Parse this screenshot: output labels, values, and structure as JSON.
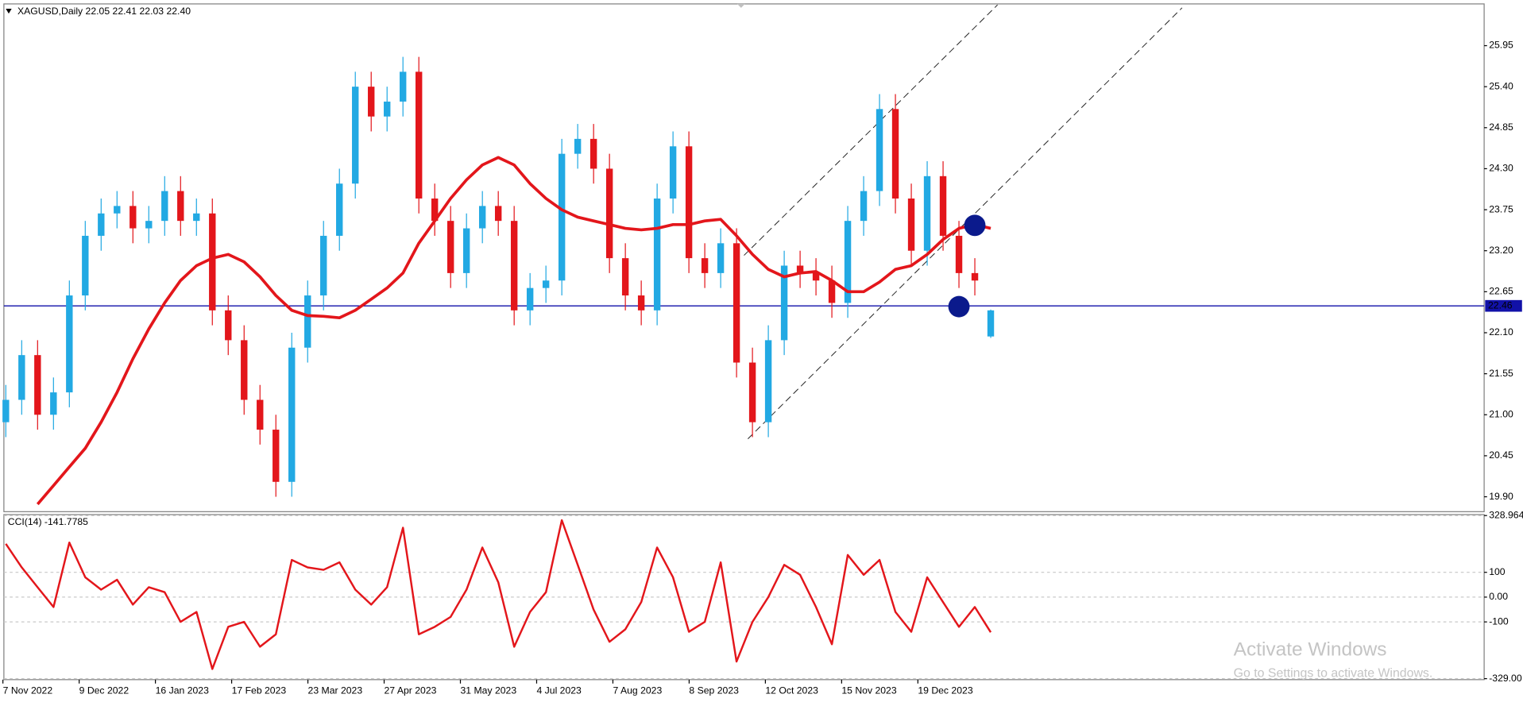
{
  "chart_data": [
    {
      "type": "candlestick",
      "title": "XAGUSD,Daily  22.05 22.41 22.03 22.40",
      "date_labels": [
        "7 Nov 2022",
        "9 Dec 2022",
        "16 Jan 2023",
        "17 Feb 2023",
        "23 Mar 2023",
        "27 Apr 2023",
        "31 May 2023",
        "4 Jul 2023",
        "7 Aug 2023",
        "8 Sep 2023",
        "12 Oct 2023",
        "15 Nov 2023",
        "19 Dec 2023"
      ],
      "open": [
        20.9,
        21.2,
        21.8,
        21.0,
        21.3,
        22.6,
        23.4,
        23.7,
        23.8,
        23.5,
        23.6,
        24.0,
        23.6,
        23.7,
        22.4,
        22.0,
        21.2,
        20.8,
        20.1,
        21.9,
        22.6,
        23.4,
        24.1,
        25.4,
        25.0,
        25.2,
        25.6,
        23.9,
        23.6,
        22.9,
        23.5,
        23.8,
        23.6,
        22.4,
        22.7,
        22.8,
        24.5,
        24.7,
        24.3,
        23.1,
        22.6,
        22.4,
        23.9,
        24.6,
        23.1,
        22.9,
        23.3,
        21.7,
        20.9,
        22.0,
        23.0,
        22.9,
        22.8,
        22.5,
        23.6,
        24.0,
        25.1,
        23.9,
        23.2,
        24.2,
        23.4,
        22.9,
        22.05
      ],
      "high": [
        21.4,
        22.0,
        22.0,
        21.5,
        22.8,
        23.6,
        23.9,
        24.0,
        24.0,
        23.8,
        24.2,
        24.2,
        23.9,
        23.9,
        22.6,
        22.2,
        21.4,
        21.0,
        22.1,
        22.8,
        23.6,
        24.3,
        25.6,
        25.6,
        25.4,
        25.8,
        25.8,
        24.1,
        23.8,
        23.7,
        24.0,
        24.0,
        23.8,
        22.9,
        23.0,
        24.7,
        24.9,
        24.9,
        24.5,
        23.3,
        22.8,
        24.1,
        24.8,
        24.8,
        23.3,
        23.5,
        23.5,
        21.9,
        22.2,
        23.2,
        23.2,
        23.1,
        23.0,
        23.8,
        24.2,
        25.3,
        25.3,
        24.1,
        24.4,
        24.4,
        23.6,
        23.1,
        22.41
      ],
      "low": [
        20.7,
        21.0,
        20.8,
        20.8,
        21.1,
        22.4,
        23.2,
        23.5,
        23.3,
        23.3,
        23.4,
        23.4,
        23.4,
        22.2,
        21.8,
        21.0,
        20.6,
        19.9,
        19.9,
        21.7,
        22.4,
        23.2,
        23.9,
        24.8,
        24.8,
        25.0,
        23.7,
        23.4,
        22.7,
        22.7,
        23.3,
        23.4,
        22.2,
        22.2,
        22.5,
        22.6,
        24.3,
        24.1,
        22.9,
        22.4,
        22.2,
        22.2,
        23.7,
        22.9,
        22.7,
        22.7,
        21.5,
        20.7,
        20.7,
        21.8,
        22.7,
        22.6,
        22.3,
        22.3,
        23.4,
        23.8,
        23.7,
        23.0,
        23.0,
        23.2,
        22.7,
        22.6,
        22.03
      ],
      "close": [
        21.2,
        21.8,
        21.0,
        21.3,
        22.6,
        23.4,
        23.7,
        23.8,
        23.5,
        23.6,
        24.0,
        23.6,
        23.7,
        22.4,
        22.0,
        21.2,
        20.8,
        20.1,
        21.9,
        22.6,
        23.4,
        24.1,
        25.4,
        25.0,
        25.2,
        25.6,
        23.9,
        23.6,
        22.9,
        23.5,
        23.8,
        23.6,
        22.4,
        22.7,
        22.8,
        24.5,
        24.7,
        24.3,
        23.1,
        22.6,
        22.4,
        23.9,
        24.6,
        23.1,
        22.9,
        23.3,
        21.7,
        20.9,
        22.0,
        23.0,
        22.9,
        22.8,
        22.5,
        23.6,
        24.0,
        25.1,
        23.9,
        23.2,
        24.2,
        23.4,
        22.9,
        22.8,
        22.4
      ],
      "up_color": "#22a9e3",
      "down_color": "#e3161b",
      "ma": {
        "color": "#e3161b",
        "values": [
          null,
          null,
          19.8,
          20.05,
          20.3,
          20.55,
          20.9,
          21.3,
          21.75,
          22.15,
          22.5,
          22.8,
          23.0,
          23.1,
          23.15,
          23.05,
          22.85,
          22.6,
          22.4,
          22.33,
          22.32,
          22.3,
          22.4,
          22.55,
          22.7,
          22.9,
          23.3,
          23.6,
          23.9,
          24.15,
          24.35,
          24.45,
          24.35,
          24.1,
          23.9,
          23.75,
          23.65,
          23.6,
          23.55,
          23.5,
          23.48,
          23.5,
          23.55,
          23.55,
          23.6,
          23.62,
          23.4,
          23.15,
          22.95,
          22.85,
          22.9,
          22.92,
          22.8,
          22.65,
          22.65,
          22.78,
          22.95,
          23.0,
          23.15,
          23.35,
          23.5,
          23.55,
          23.5
        ]
      },
      "signals": {
        "color": "#0b1a8c",
        "values": [
          null,
          null,
          null,
          null,
          null,
          null,
          null,
          null,
          null,
          null,
          null,
          null,
          null,
          null,
          null,
          null,
          null,
          null,
          null,
          null,
          null,
          null,
          null,
          null,
          null,
          null,
          null,
          null,
          null,
          null,
          null,
          null,
          null,
          null,
          null,
          null,
          null,
          null,
          null,
          null,
          null,
          null,
          null,
          null,
          null,
          null,
          null,
          null,
          null,
          null,
          null,
          null,
          null,
          null,
          null,
          null,
          null,
          null,
          null,
          null,
          22.45,
          23.54,
          null
        ]
      },
      "current_price": 22.46,
      "current_price_color": "#1111a8",
      "ylim": [
        19.7,
        26.51
      ],
      "yticks": [
        {
          "value": 25.95,
          "label": "25.95"
        },
        {
          "value": 25.4,
          "label": "25.40"
        },
        24.85,
        {
          "value": 24.3,
          "label": "24.30"
        },
        23.75,
        {
          "value": 23.2,
          "label": "23.20"
        },
        22.65,
        {
          "value": 22.1,
          "label": "22.10"
        },
        21.55,
        {
          "value": 21,
          "label": "21.00"
        },
        20.45,
        {
          "value": 19.9,
          "label": "19.90"
        }
      ]
    },
    {
      "type": "line",
      "title": "CCI(14) -141.7785",
      "color": "#e3161b",
      "values": [
        215,
        120,
        40,
        -40,
        220,
        80,
        30,
        70,
        -30,
        40,
        20,
        -100,
        -60,
        -290,
        -120,
        -100,
        -200,
        -150,
        150,
        120,
        110,
        140,
        30,
        -30,
        40,
        280,
        -150,
        -120,
        -80,
        30,
        200,
        60,
        -200,
        -60,
        20,
        310,
        130,
        -50,
        -180,
        -130,
        -20,
        200,
        80,
        -140,
        -100,
        140,
        -260,
        -100,
        0,
        130,
        90,
        -40,
        -190,
        170,
        90,
        150,
        -60,
        -140,
        80,
        -20,
        -120,
        -40,
        -141.7785
      ],
      "ylim": [
        -329,
        328.964
      ],
      "yticks": [
        328.964,
        100,
        {
          "value": 0,
          "label": "0.00"
        },
        -100,
        {
          "value": -329,
          "label": "-329.00"
        }
      ]
    }
  ],
  "watermark": {
    "title": "Activate Windows",
    "subtitle": "Go to Settings to activate Windows."
  }
}
